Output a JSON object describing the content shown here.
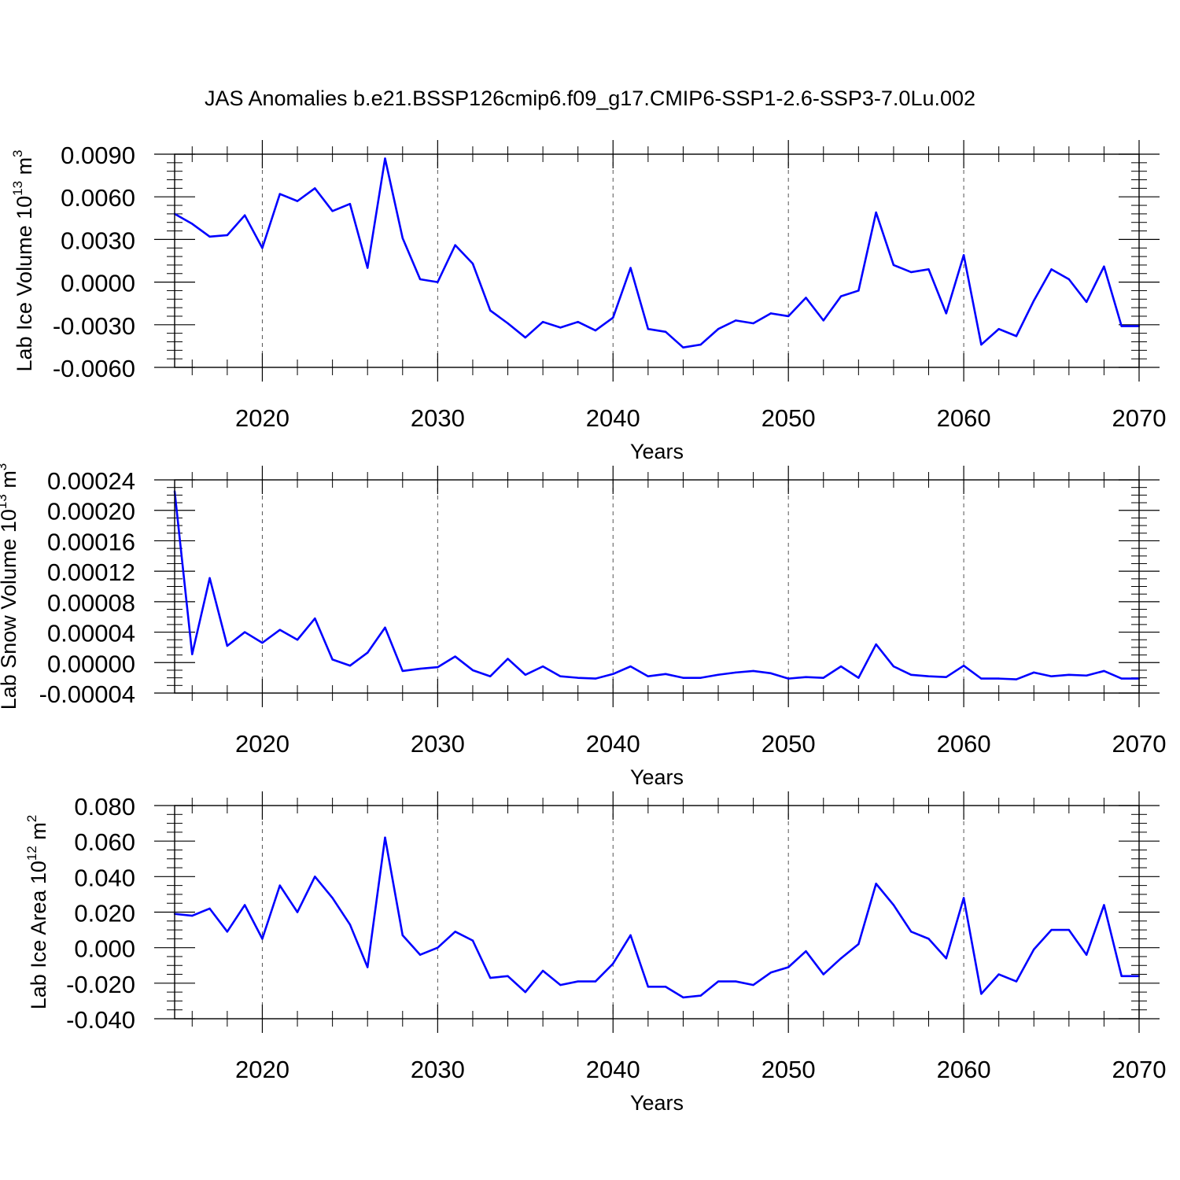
{
  "title": "JAS Anomalies b.e21.BSSP126cmip6.f09_g17.CMIP6-SSP1-2.6-SSP3-7.0Lu.002",
  "colors": {
    "line": "#0000ff",
    "axis": "#000000",
    "grid": "#555555"
  },
  "chart_data": [
    {
      "type": "line",
      "ylabel": "Lab Ice Volume 10",
      "ylabel_exp": "13",
      "ylabel_unit": " m",
      "ylabel_unit_exp": "3",
      "xlabel": "Years",
      "xlim": [
        2015,
        2070
      ],
      "ylim": [
        -0.006,
        0.009
      ],
      "yticks": [
        -0.006,
        -0.003,
        0.0,
        0.003,
        0.006,
        0.009
      ],
      "ytick_labels": [
        "-0.0060",
        "-0.0030",
        "0.0000",
        "0.0030",
        "0.0060",
        "0.0090"
      ],
      "yminor_step": 0.0006,
      "xticks": [
        2020,
        2030,
        2040,
        2050,
        2060,
        2070
      ],
      "xtick_labels": [
        "2020",
        "2030",
        "2040",
        "2050",
        "2060",
        "2070"
      ],
      "grid": "vertical dashed at major x ticks",
      "x": [
        2015,
        2016,
        2017,
        2018,
        2019,
        2020,
        2021,
        2022,
        2023,
        2024,
        2025,
        2026,
        2027,
        2028,
        2029,
        2030,
        2031,
        2032,
        2033,
        2034,
        2035,
        2036,
        2037,
        2038,
        2039,
        2040,
        2041,
        2042,
        2043,
        2044,
        2045,
        2046,
        2047,
        2048,
        2049,
        2050,
        2051,
        2052,
        2053,
        2054,
        2055,
        2056,
        2057,
        2058,
        2059,
        2060,
        2061,
        2062,
        2063,
        2064,
        2065,
        2066,
        2067,
        2068,
        2069,
        2070
      ],
      "values": [
        0.0048,
        0.0041,
        0.0032,
        0.0033,
        0.0047,
        0.0024,
        0.0062,
        0.0057,
        0.0066,
        0.005,
        0.0055,
        0.001,
        0.0087,
        0.0031,
        0.0002,
        0.0,
        0.0026,
        0.0013,
        -0.002,
        -0.0029,
        -0.0039,
        -0.0028,
        -0.0032,
        -0.0028,
        -0.0034,
        -0.0025,
        0.001,
        -0.0033,
        -0.0035,
        -0.0046,
        -0.0044,
        -0.0033,
        -0.0027,
        -0.0029,
        -0.0022,
        -0.0024,
        -0.0011,
        -0.0027,
        -0.001,
        -0.0006,
        0.0049,
        0.0012,
        0.0007,
        0.0009,
        -0.0022,
        0.0019,
        -0.0044,
        -0.0033,
        -0.0038,
        -0.0013,
        0.0009,
        0.0002,
        -0.0014,
        0.0011,
        -0.0031,
        -0.0031
      ]
    },
    {
      "type": "line",
      "ylabel": "Lab Snow Volume 10",
      "ylabel_exp": "13",
      "ylabel_unit": " m",
      "ylabel_unit_exp": "3",
      "xlabel": "Years",
      "xlim": [
        2015,
        2070
      ],
      "ylim": [
        -4e-05,
        0.00024
      ],
      "yticks": [
        -4e-05,
        0.0,
        4e-05,
        8e-05,
        0.00012,
        0.00016,
        0.0002,
        0.00024
      ],
      "ytick_labels": [
        "-0.00004",
        "0.00000",
        "0.00004",
        "0.00008",
        "0.00012",
        "0.00016",
        "0.00020",
        "0.00024"
      ],
      "yminor_step": 1e-05,
      "xticks": [
        2020,
        2030,
        2040,
        2050,
        2060,
        2070
      ],
      "xtick_labels": [
        "2020",
        "2030",
        "2040",
        "2050",
        "2060",
        "2070"
      ],
      "grid": "vertical dashed at major x ticks",
      "x": [
        2015,
        2016,
        2017,
        2018,
        2019,
        2020,
        2021,
        2022,
        2023,
        2024,
        2025,
        2026,
        2027,
        2028,
        2029,
        2030,
        2031,
        2032,
        2033,
        2034,
        2035,
        2036,
        2037,
        2038,
        2039,
        2040,
        2041,
        2042,
        2043,
        2044,
        2045,
        2046,
        2047,
        2048,
        2049,
        2050,
        2051,
        2052,
        2053,
        2054,
        2055,
        2056,
        2057,
        2058,
        2059,
        2060,
        2061,
        2062,
        2063,
        2064,
        2065,
        2066,
        2067,
        2068,
        2069,
        2070
      ],
      "values": [
        0.000225,
        1.1e-05,
        0.000111,
        2.2e-05,
        4e-05,
        2.6e-05,
        4.3e-05,
        3e-05,
        5.8e-05,
        4e-06,
        -4e-06,
        1.3e-05,
        4.6e-05,
        -1.1e-05,
        -8e-06,
        -6e-06,
        8e-06,
        -1e-05,
        -1.8e-05,
        5e-06,
        -1.6e-05,
        -5e-06,
        -1.8e-05,
        -2e-05,
        -2.1e-05,
        -1.5e-05,
        -5e-06,
        -1.8e-05,
        -1.5e-05,
        -2e-05,
        -2e-05,
        -1.6e-05,
        -1.3e-05,
        -1.1e-05,
        -1.4e-05,
        -2.1e-05,
        -1.9e-05,
        -2e-05,
        -5e-06,
        -2e-05,
        2.4e-05,
        -5e-06,
        -1.6e-05,
        -1.8e-05,
        -1.9e-05,
        -4e-06,
        -2.1e-05,
        -2.1e-05,
        -2.2e-05,
        -1.3e-05,
        -1.8e-05,
        -1.6e-05,
        -1.7e-05,
        -1.1e-05,
        -2.1e-05,
        -2.1e-05
      ]
    },
    {
      "type": "line",
      "ylabel": "Lab Ice Area 10",
      "ylabel_exp": "12",
      "ylabel_unit": " m",
      "ylabel_unit_exp": "2",
      "xlabel": "Years",
      "xlim": [
        2015,
        2070
      ],
      "ylim": [
        -0.04,
        0.08
      ],
      "yticks": [
        -0.04,
        -0.02,
        0.0,
        0.02,
        0.04,
        0.06,
        0.08
      ],
      "ytick_labels": [
        "-0.040",
        "-0.020",
        "0.000",
        "0.020",
        "0.040",
        "0.060",
        "0.080"
      ],
      "yminor_step": 0.005,
      "xticks": [
        2020,
        2030,
        2040,
        2050,
        2060,
        2070
      ],
      "xtick_labels": [
        "2020",
        "2030",
        "2040",
        "2050",
        "2060",
        "2070"
      ],
      "grid": "vertical dashed at major x ticks",
      "x": [
        2015,
        2016,
        2017,
        2018,
        2019,
        2020,
        2021,
        2022,
        2023,
        2024,
        2025,
        2026,
        2027,
        2028,
        2029,
        2030,
        2031,
        2032,
        2033,
        2034,
        2035,
        2036,
        2037,
        2038,
        2039,
        2040,
        2041,
        2042,
        2043,
        2044,
        2045,
        2046,
        2047,
        2048,
        2049,
        2050,
        2051,
        2052,
        2053,
        2054,
        2055,
        2056,
        2057,
        2058,
        2059,
        2060,
        2061,
        2062,
        2063,
        2064,
        2065,
        2066,
        2067,
        2068,
        2069,
        2070
      ],
      "values": [
        0.019,
        0.018,
        0.022,
        0.009,
        0.024,
        0.005,
        0.035,
        0.02,
        0.04,
        0.028,
        0.013,
        -0.011,
        0.062,
        0.007,
        -0.004,
        0.0,
        0.009,
        0.004,
        -0.017,
        -0.016,
        -0.025,
        -0.013,
        -0.021,
        -0.019,
        -0.019,
        -0.009,
        0.007,
        -0.022,
        -0.022,
        -0.028,
        -0.027,
        -0.019,
        -0.019,
        -0.021,
        -0.014,
        -0.011,
        -0.002,
        -0.015,
        -0.006,
        0.002,
        0.036,
        0.024,
        0.009,
        0.005,
        -0.006,
        0.028,
        -0.026,
        -0.015,
        -0.019,
        -0.001,
        0.01,
        0.01,
        -0.004,
        0.024,
        -0.016,
        -0.016
      ]
    }
  ]
}
